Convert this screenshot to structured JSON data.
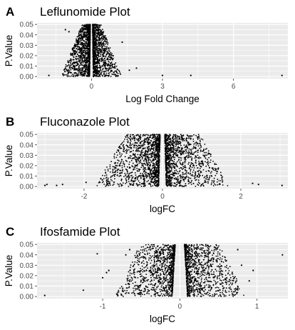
{
  "chart_data": [
    {
      "type": "scatter",
      "panel_label": "A",
      "title": "Leflunomide Plot",
      "xlabel": "Log Fold Change",
      "ylabel": "P.Value",
      "xlim": [
        -2.3,
        8.3
      ],
      "ylim": [
        -0.002,
        0.0515
      ],
      "xticks": [
        0,
        3,
        6
      ],
      "yticks": [
        0.0,
        0.01,
        0.02,
        0.03,
        0.04,
        0.05
      ],
      "ytick_labels": [
        "0.00",
        "0.01",
        "0.02",
        "0.03",
        "0.04",
        "0.05"
      ],
      "grid": true,
      "background": "#ebebeb",
      "point_color": "#000000",
      "outliers": [
        {
          "x": -1.8,
          "y": 0.001
        },
        {
          "x": -1.2,
          "y": 0.002
        },
        {
          "x": -1.1,
          "y": 0.045
        },
        {
          "x": -0.95,
          "y": 0.043
        },
        {
          "x": -0.7,
          "y": 0.03
        },
        {
          "x": -0.8,
          "y": 0.027
        },
        {
          "x": 1.3,
          "y": 0.033
        },
        {
          "x": 1.6,
          "y": 0.006
        },
        {
          "x": 1.9,
          "y": 0.008
        },
        {
          "x": 3.0,
          "y": 0.001
        },
        {
          "x": 4.2,
          "y": 0.001
        },
        {
          "x": 8.05,
          "y": 0.001
        }
      ],
      "density": {
        "inner_gap": 0.08,
        "spread_low_p": 1.2,
        "spread_high_p": 0.35,
        "count": 2200
      }
    },
    {
      "type": "scatter",
      "panel_label": "B",
      "title": "Fluconazole Plot",
      "xlabel": "logFC",
      "ylabel": "P.Value",
      "xlim": [
        -3.2,
        3.2
      ],
      "ylim": [
        -0.002,
        0.0515
      ],
      "xticks": [
        -2,
        0,
        2
      ],
      "yticks": [
        0.0,
        0.01,
        0.02,
        0.03,
        0.04,
        0.05
      ],
      "ytick_labels": [
        "0.00",
        "0.01",
        "0.02",
        "0.03",
        "0.04",
        "0.05"
      ],
      "grid": true,
      "background": "#ebebeb",
      "point_color": "#000000",
      "outliers": [
        {
          "x": -3.0,
          "y": 0.001
        },
        {
          "x": -2.95,
          "y": 0.002
        },
        {
          "x": -2.7,
          "y": 0.001
        },
        {
          "x": -2.55,
          "y": 0.002
        },
        {
          "x": -1.95,
          "y": 0.004
        },
        {
          "x": 2.3,
          "y": 0.003
        },
        {
          "x": 2.45,
          "y": 0.002
        },
        {
          "x": 3.05,
          "y": 0.001
        },
        {
          "x": -1.1,
          "y": 0.02
        },
        {
          "x": 1.2,
          "y": 0.018
        }
      ],
      "density": {
        "inner_gap": 0.1,
        "spread_low_p": 1.6,
        "spread_high_p": 0.9,
        "count": 2400
      }
    },
    {
      "type": "scatter",
      "panel_label": "C",
      "title": "Ifosfamide Plot",
      "xlabel": "logFC",
      "ylabel": "P.Value",
      "xlim": [
        -1.85,
        1.4
      ],
      "ylim": [
        -0.002,
        0.0515
      ],
      "xticks": [
        -1,
        0,
        1
      ],
      "yticks": [
        0.0,
        0.01,
        0.02,
        0.03,
        0.04,
        0.05
      ],
      "ytick_labels": [
        "0.00",
        "0.01",
        "0.02",
        "0.03",
        "0.04",
        "0.05"
      ],
      "grid": true,
      "background": "#ebebeb",
      "point_color": "#000000",
      "outliers": [
        {
          "x": -1.75,
          "y": 0.001
        },
        {
          "x": -1.25,
          "y": 0.006
        },
        {
          "x": -1.07,
          "y": 0.041
        },
        {
          "x": -1.0,
          "y": 0.018
        },
        {
          "x": -0.95,
          "y": 0.023
        },
        {
          "x": -0.92,
          "y": 0.025
        },
        {
          "x": -0.7,
          "y": 0.04
        },
        {
          "x": -0.65,
          "y": 0.045
        },
        {
          "x": 0.75,
          "y": 0.045
        },
        {
          "x": 0.8,
          "y": 0.03
        },
        {
          "x": 0.9,
          "y": 0.015
        },
        {
          "x": 0.95,
          "y": 0.025
        },
        {
          "x": 1.33,
          "y": 0.04
        }
      ],
      "density": {
        "inner_gap": 0.1,
        "spread_low_p": 0.75,
        "spread_high_p": 0.45,
        "count": 2000
      }
    }
  ]
}
